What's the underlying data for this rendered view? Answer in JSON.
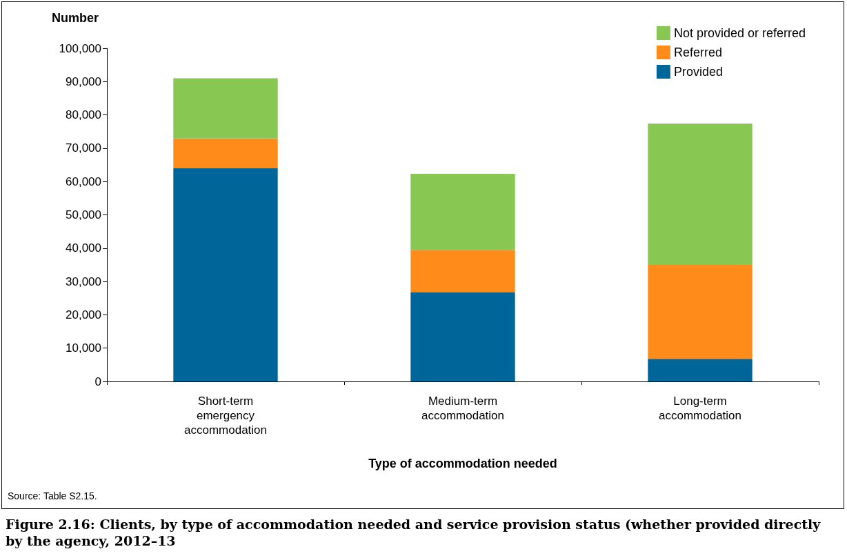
{
  "chart_data": {
    "type": "bar",
    "title": "Figure 2.16: Clients, by type of accommodation needed and service provision status (whether provided directly by the agency, 2012–13",
    "xlabel": "Type of accommodation needed",
    "ylabel": "Number",
    "annotations": [
      "Source: Table S2.15."
    ],
    "categories": [
      "Short-term emergency accommodation",
      "Medium-term accommodation",
      "Long-term accommodation"
    ],
    "series": [
      {
        "name": "Provided",
        "color": "#006699",
        "values": [
          64000,
          26700,
          6800
        ]
      },
      {
        "name": "Referred",
        "color": "#ff8c1a",
        "values": [
          9000,
          12800,
          28200
        ]
      },
      {
        "name": "Not provided or referred",
        "color": "#87c752",
        "values": [
          18000,
          22800,
          42400
        ]
      }
    ],
    "stacked": true,
    "ylim": [
      0,
      100000
    ],
    "yticks": [
      0,
      {
        "value": 10000,
        "label": "10,000"
      },
      {
        "value": 20000,
        "label": "20,000"
      },
      {
        "value": 30000,
        "label": "30,000"
      },
      {
        "value": 40000,
        "label": "40,000"
      },
      {
        "value": 50000,
        "label": "50,000"
      },
      {
        "value": 60000,
        "label": "60,000"
      },
      {
        "value": 70000,
        "label": "70,000"
      },
      {
        "value": 80000,
        "label": "80,000"
      },
      {
        "value": 90000,
        "label": "90,000"
      },
      {
        "value": 100000,
        "label": "100,000"
      }
    ],
    "grid": false,
    "legend": "top right"
  }
}
